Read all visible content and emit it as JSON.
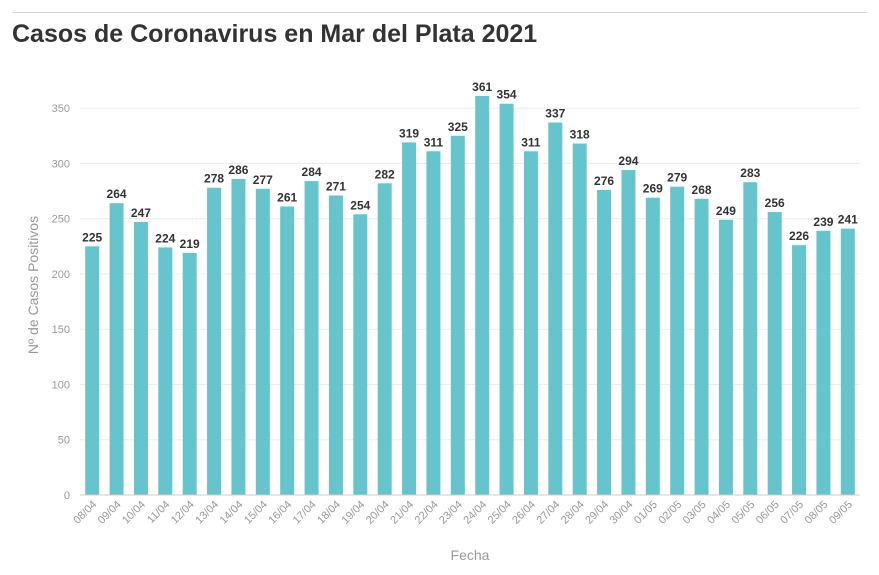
{
  "chart_data": {
    "type": "bar",
    "title": "Casos de Coronavirus en Mar del Plata 2021",
    "xlabel": "Fecha",
    "ylabel": "Nº de Casos Positivos",
    "ylim": [
      0,
      380
    ],
    "yticks": [
      0,
      50,
      100,
      150,
      200,
      250,
      300,
      350
    ],
    "grid": true,
    "bar_color": "#66c5cc",
    "categories": [
      "08/04",
      "09/04",
      "10/04",
      "11/04",
      "12/04",
      "13/04",
      "14/04",
      "15/04",
      "16/04",
      "17/04",
      "18/04",
      "19/04",
      "20/04",
      "21/04",
      "22/04",
      "23/04",
      "24/04",
      "25/04",
      "26/04",
      "27/04",
      "28/04",
      "29/04",
      "30/04",
      "01/05",
      "02/05",
      "03/05",
      "04/05",
      "05/05",
      "06/05",
      "07/05",
      "08/05",
      "09/05"
    ],
    "values": [
      225,
      264,
      247,
      224,
      219,
      278,
      286,
      277,
      261,
      284,
      271,
      254,
      282,
      319,
      311,
      325,
      361,
      354,
      311,
      337,
      318,
      276,
      294,
      269,
      279,
      268,
      249,
      283,
      256,
      226,
      239,
      241
    ]
  }
}
